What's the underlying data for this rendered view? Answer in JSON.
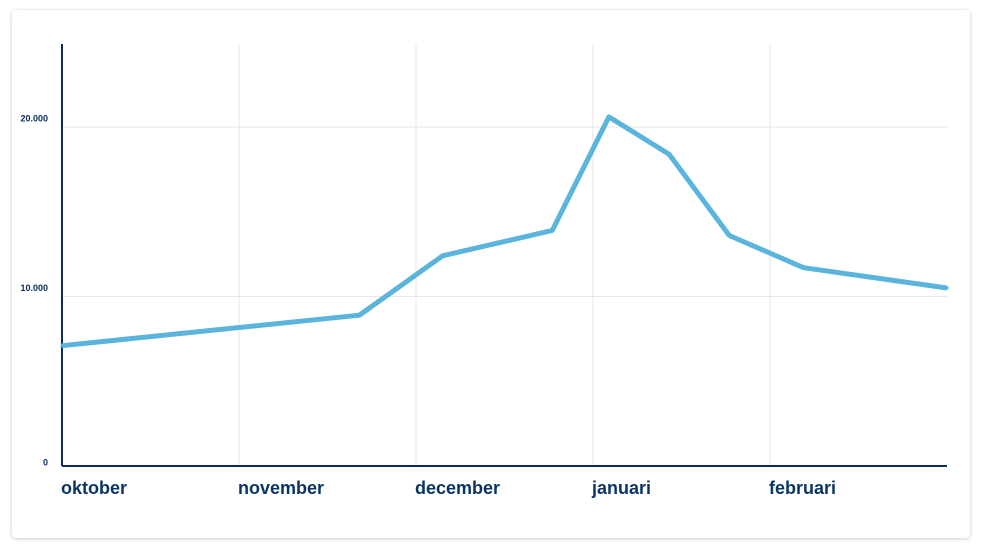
{
  "chart_data": {
    "type": "line",
    "title": "",
    "xlabel": "",
    "ylabel": "",
    "x_tick_labels": [
      "oktober",
      "november",
      "december",
      "januari",
      "februari"
    ],
    "y_tick_labels": [
      "0",
      "10.000",
      "20.000"
    ],
    "y_tick_values": [
      0,
      10000,
      20000
    ],
    "ylim": [
      0,
      24900
    ],
    "xlim": [
      0,
      5
    ],
    "grid": true,
    "series": [
      {
        "color": "#5ab4dc",
        "points": [
          {
            "x": 0.0,
            "y": 7100
          },
          {
            "x": 1.68,
            "y": 8900
          },
          {
            "x": 2.15,
            "y": 12400
          },
          {
            "x": 2.77,
            "y": 13900
          },
          {
            "x": 3.09,
            "y": 20600
          },
          {
            "x": 3.43,
            "y": 18400
          },
          {
            "x": 3.77,
            "y": 13600
          },
          {
            "x": 4.19,
            "y": 11700
          },
          {
            "x": 5.0,
            "y": 10500
          }
        ]
      }
    ]
  },
  "colors": {
    "axis": "#0b2c5a",
    "grid": "#e6e6e6",
    "tick_text": "#0b3566"
  }
}
